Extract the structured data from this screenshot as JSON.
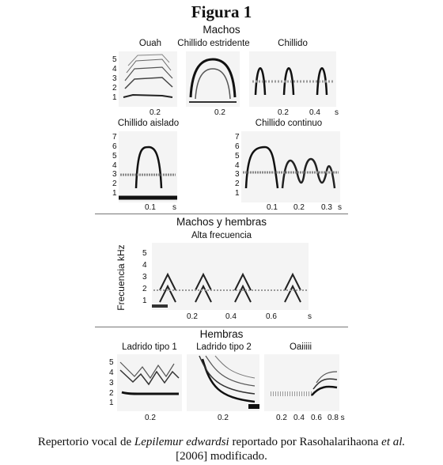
{
  "title": "Figura 1",
  "sections": {
    "males": "Machos",
    "both": "Machos y hembras",
    "females": "Hembras"
  },
  "panels": {
    "ouah": "Ouah",
    "chillido_estridente": "Chillido estridente",
    "chillido": "Chillido",
    "chillido_aislado": "Chillido aislado",
    "chillido_continuo": "Chillido continuo",
    "alta_frecuencia": "Alta frecuencia",
    "ladrido1": "Ladrido tipo 1",
    "ladrido2": "Ladrido tipo 2",
    "oaiiiii": "Oaiiiii"
  },
  "y_axis_label": "Frecuencia kHz",
  "ticks": {
    "k1": "1",
    "k2": "2",
    "k3": "3",
    "k4": "4",
    "k5": "5",
    "k6": "6",
    "k7": "7",
    "t01": "0.1",
    "t02": "0.2",
    "t03": "0.3",
    "t04": "0.4",
    "t06": "0.6",
    "t08s": "0.8 s",
    "s": "s"
  },
  "caption": {
    "line1_a": "Repertorio vocal de ",
    "line1_species": "Lepilemur edwardsi",
    "line1_b": " reportado por Rasohalarihaona ",
    "line1_etal": "et al.",
    "line2": "[2006] modificado."
  }
}
